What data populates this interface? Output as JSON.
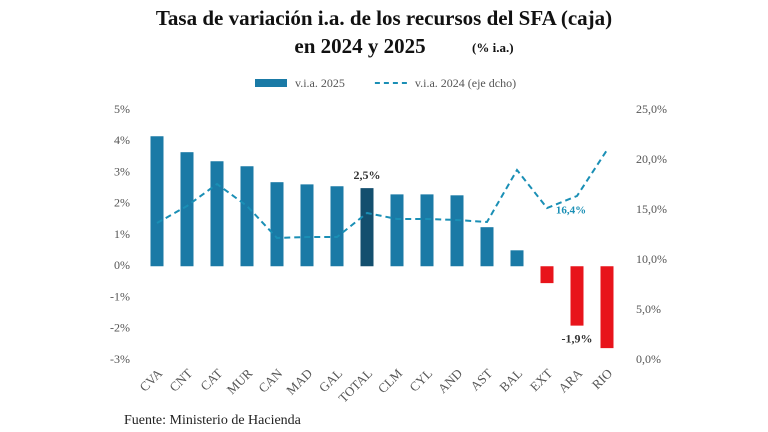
{
  "chart_data": {
    "type": "bar",
    "title": "Tasa de variación i.a. de los recursos del SFA (caja)",
    "subtitle": "en 2024 y 2025",
    "unit_note": "(% i.a.)",
    "source": "Fuente: Ministerio de Hacienda",
    "categories": [
      "CVA",
      "CNT",
      "CAT",
      "MUR",
      "CAN",
      "MAD",
      "GAL",
      "TOTAL",
      "CLM",
      "CYL",
      "AND",
      "AST",
      "BAL",
      "EXT",
      "ARA",
      "RIO"
    ],
    "series": [
      {
        "name": "v.i.a. 2025",
        "type": "bar",
        "color": "#1a7aa6",
        "colors": [
          "#1a7aa6",
          "#1a7aa6",
          "#1a7aa6",
          "#1a7aa6",
          "#1a7aa6",
          "#1a7aa6",
          "#1a7aa6",
          "#134f6e",
          "#1a7aa6",
          "#1a7aa6",
          "#1a7aa6",
          "#1a7aa6",
          "#1a7aa6",
          "#e8141b",
          "#e8141b",
          "#e8141b"
        ],
        "values": [
          4.16,
          3.65,
          3.36,
          3.2,
          2.69,
          2.62,
          2.56,
          2.5,
          2.3,
          2.3,
          2.27,
          1.25,
          0.51,
          -0.54,
          -1.9,
          -2.62
        ],
        "value_labels": [
          null,
          null,
          null,
          null,
          null,
          null,
          null,
          "2,5%",
          null,
          null,
          null,
          null,
          null,
          null,
          "-1,9%",
          null
        ]
      },
      {
        "name": "v.i.a. 2024 (eje dcho)",
        "type": "line",
        "axis": "y2",
        "dashed": true,
        "color": "#1a8fb5",
        "values": [
          13.7,
          15.4,
          17.6,
          15.4,
          12.2,
          12.3,
          12.3,
          14.7,
          14.1,
          14.1,
          14.0,
          13.8,
          19.0,
          15.2,
          16.4,
          21.0
        ],
        "value_labels": [
          null,
          null,
          null,
          null,
          null,
          null,
          null,
          null,
          null,
          null,
          null,
          null,
          null,
          null,
          "16,4%",
          null
        ]
      }
    ],
    "ylim": [
      -3,
      5
    ],
    "yticks": [
      {
        "value": -3,
        "label": "-3%"
      },
      {
        "value": -2,
        "label": "-2%"
      },
      {
        "value": -1,
        "label": "-1%"
      },
      {
        "value": 0,
        "label": "0%"
      },
      {
        "value": 1,
        "label": "1%"
      },
      {
        "value": 2,
        "label": "2%"
      },
      {
        "value": 3,
        "label": "3%"
      },
      {
        "value": 4,
        "label": "4%"
      },
      {
        "value": 5,
        "label": "5%"
      }
    ],
    "y2lim": [
      0,
      25
    ],
    "y2ticks": [
      {
        "value": 0,
        "label": "0,0%"
      },
      {
        "value": 5,
        "label": "5,0%"
      },
      {
        "value": 10,
        "label": "10,0%"
      },
      {
        "value": 15,
        "label": "15,0%"
      },
      {
        "value": 20,
        "label": "20,0%"
      },
      {
        "value": 25,
        "label": "25,0%"
      }
    ],
    "grid": false,
    "legend": "top"
  }
}
